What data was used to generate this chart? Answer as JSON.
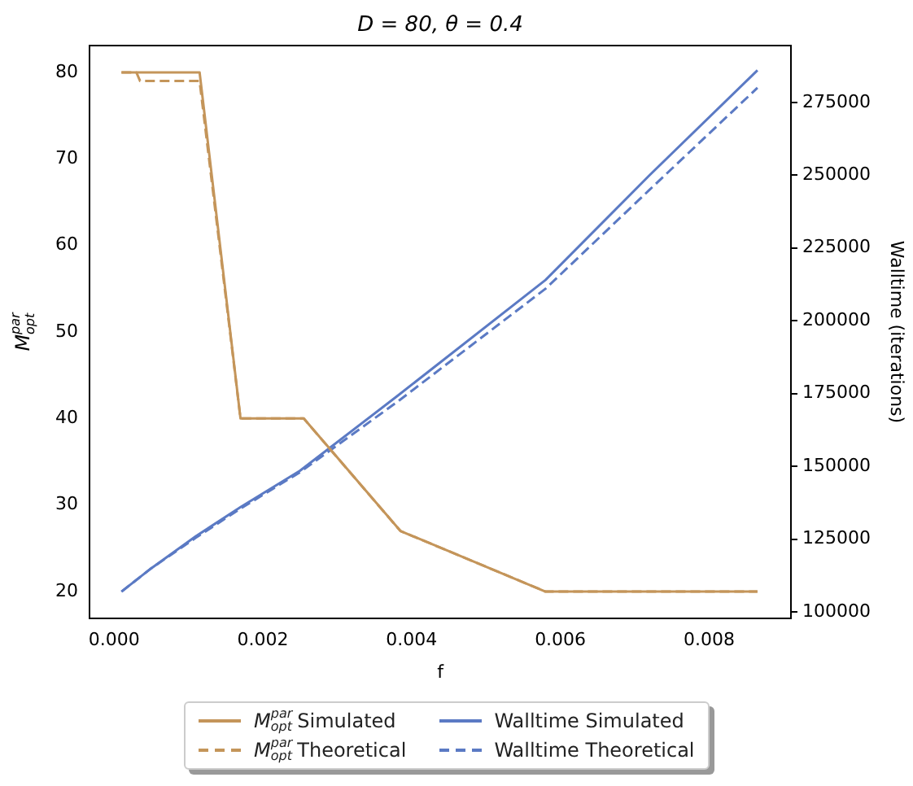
{
  "chart_data": {
    "type": "line",
    "title": "D = 80, θ = 0.4",
    "xlabel": "f",
    "ylabel": "M$^{par}$$_{opt}$",
    "y2label": "Walltime (iterations)",
    "xlim": [
      -0.00033,
      0.0091
    ],
    "xticks": [
      {
        "value": 0,
        "label": "0.000"
      },
      {
        "value": 0.002,
        "label": "0.002"
      },
      {
        "value": 0.004,
        "label": "0.004"
      },
      {
        "value": 0.006,
        "label": "0.006"
      },
      {
        "value": 0.008,
        "label": "0.008"
      }
    ],
    "ylim": [
      16.9,
      83.1
    ],
    "yticks": [
      20,
      30,
      40,
      50,
      60,
      70,
      80
    ],
    "y2lim": [
      97800,
      294500
    ],
    "y2ticks": [
      100000,
      125000,
      150000,
      175000,
      200000,
      225000,
      250000,
      275000
    ],
    "grid": false,
    "legend": "bottom",
    "marker": "none",
    "series": [
      {
        "name": "M$^{par}$$_{opt}$ Simulated",
        "color": "#c4955a",
        "line_style": "solid",
        "x": [
          0.0001,
          0.00115,
          0.0017,
          0.00255,
          0.00385,
          0.0058,
          0.00865
        ],
        "values": [
          80,
          80,
          40,
          40,
          27,
          20,
          20
        ]
      },
      {
        "name": "M$^{par}$$_{opt}$ Theoretical",
        "color": "#c4955a",
        "line_style": "dashed",
        "x": [
          0.0001,
          0.0003,
          0.00035,
          0.00115,
          0.0017,
          0.00255,
          0.00385,
          0.0058,
          0.00865
        ],
        "values": [
          80,
          80,
          79,
          79,
          40,
          40,
          27,
          20,
          20
        ]
      },
      {
        "name": "Walltime Simulated",
        "color": "#5b7ac4",
        "line_style": "solid",
        "axis": "y2",
        "x": [
          0.0001,
          0.0005,
          0.0011,
          0.0017,
          0.0025,
          0.0038,
          0.0058,
          0.0072,
          0.00865
        ],
        "values": [
          107000,
          115000,
          126000,
          136000,
          148500,
          174000,
          214000,
          250000,
          286000
        ]
      },
      {
        "name": "Walltime Theoretical",
        "color": "#5b7ac4",
        "line_style": "dashed",
        "axis": "y2",
        "x": [
          0.0001,
          0.0005,
          0.0011,
          0.0017,
          0.0025,
          0.0038,
          0.0058,
          0.0072,
          0.00865
        ],
        "values": [
          107000,
          115000,
          125500,
          135500,
          148000,
          172000,
          211000,
          245000,
          280000
        ]
      }
    ]
  }
}
